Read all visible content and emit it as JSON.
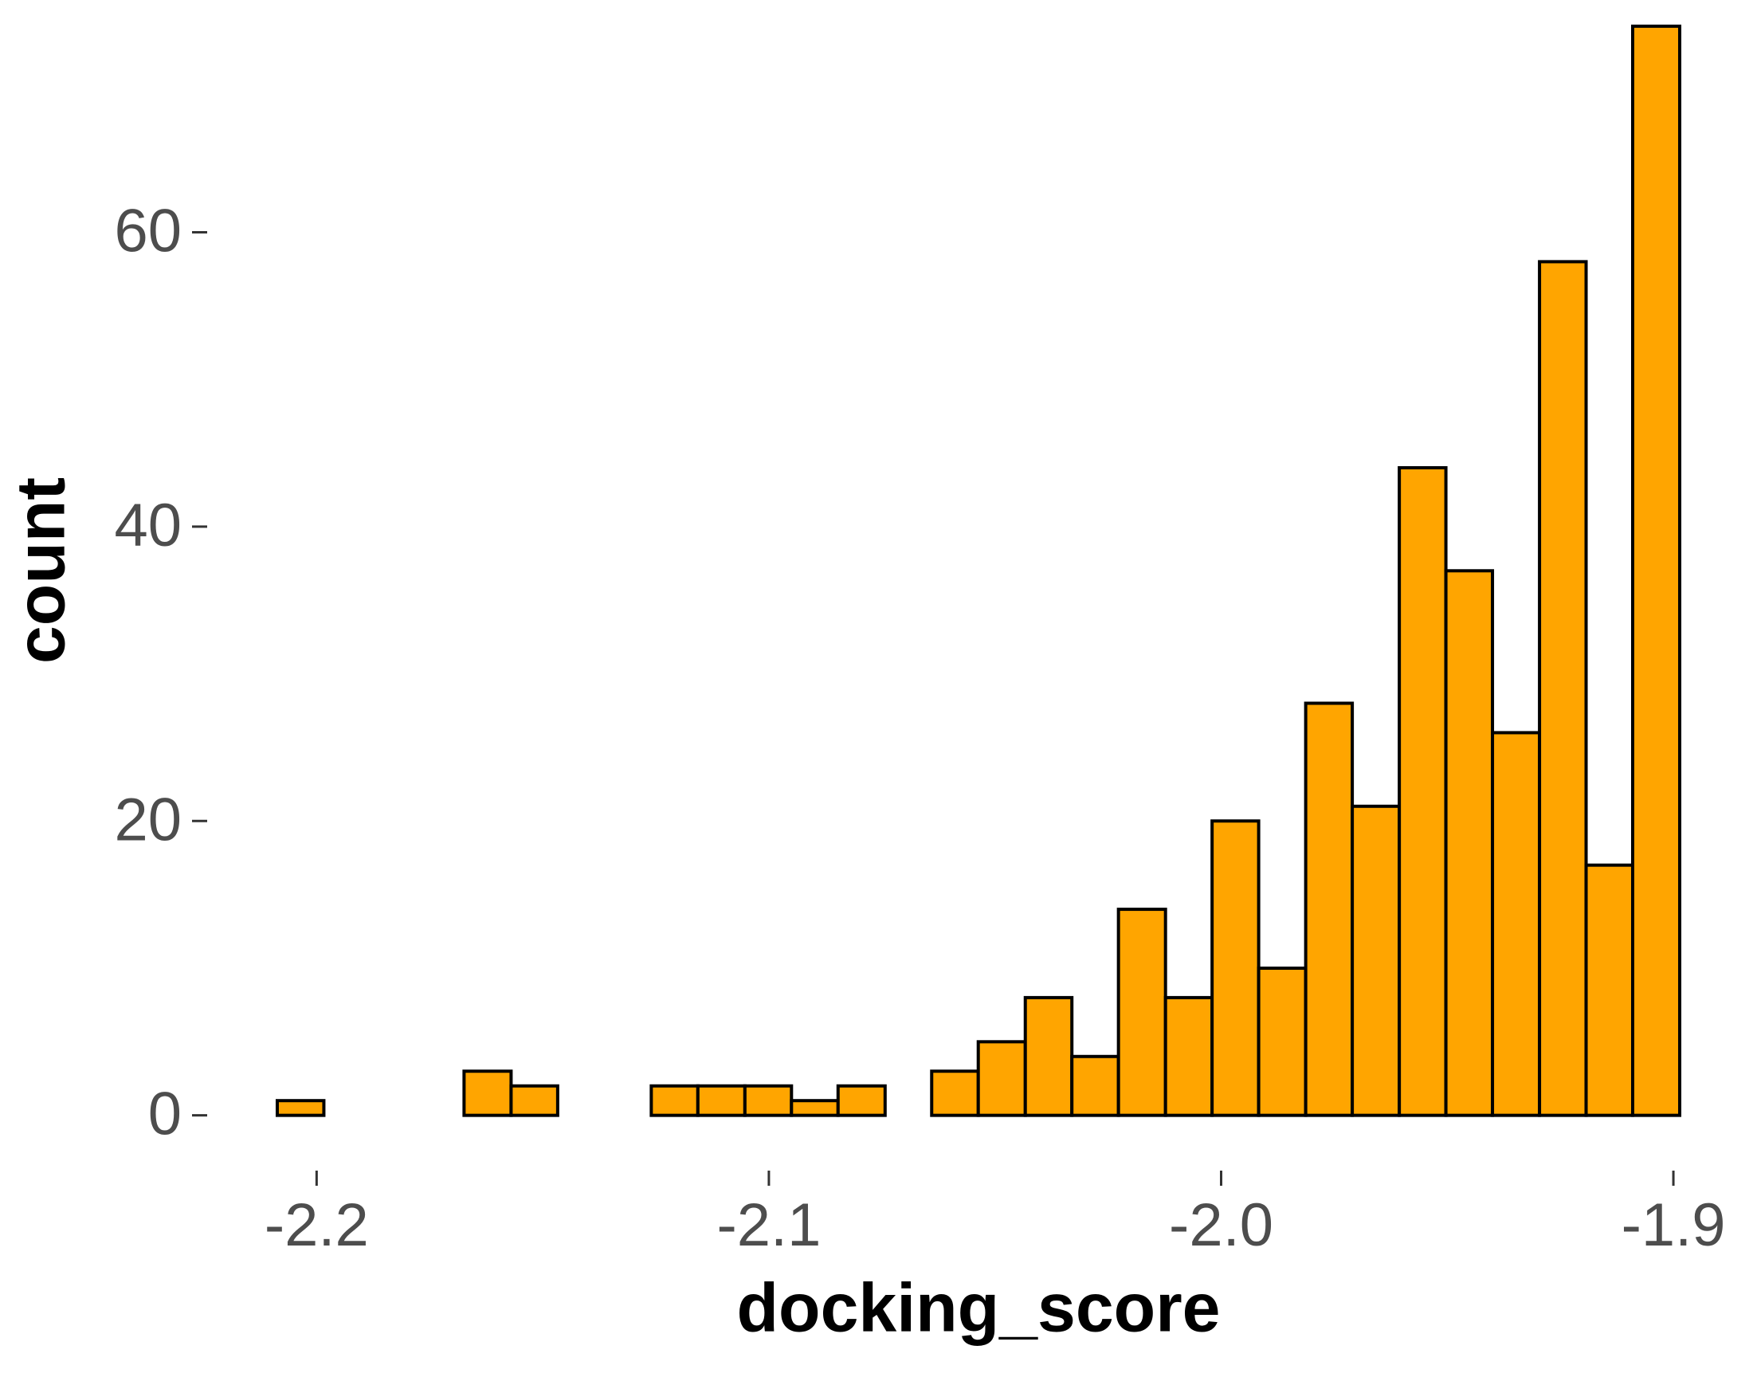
{
  "chart_data": {
    "type": "histogram",
    "x_label": "docking_score",
    "y_label": "count",
    "bins": [
      -2.2087,
      -2.1984,
      -2.188,
      -2.1777,
      -2.1674,
      -2.157,
      -2.1467,
      -2.1364,
      -2.126,
      -2.1157,
      -2.1053,
      -2.095,
      -2.0847,
      -2.0743,
      -2.064,
      -2.0537,
      -2.0433,
      -2.033,
      -2.0227,
      -2.0123,
      -2.002,
      -1.9917,
      -1.9813,
      -1.971,
      -1.9606,
      -1.9503,
      -1.94,
      -1.9296,
      -1.9193,
      -1.909,
      -1.8986
    ],
    "values": [
      1,
      0,
      0,
      0,
      3,
      2,
      0,
      0,
      2,
      2,
      2,
      1,
      2,
      0,
      3,
      5,
      8,
      4,
      14,
      8,
      20,
      10,
      28,
      21,
      44,
      37,
      26,
      58,
      17,
      74
    ],
    "color": "#ffa500",
    "edgecolor": "#000000",
    "xlim": [
      -2.2242,
      -1.8831
    ],
    "xticks": [
      -2.2,
      -2.1,
      {
        "value": -2.0,
        "label": "-2.0"
      },
      -1.9
    ],
    "ylim": [
      -3.7,
      77.7
    ],
    "yticks": [
      0,
      20,
      40,
      60
    ],
    "grid": false
  }
}
